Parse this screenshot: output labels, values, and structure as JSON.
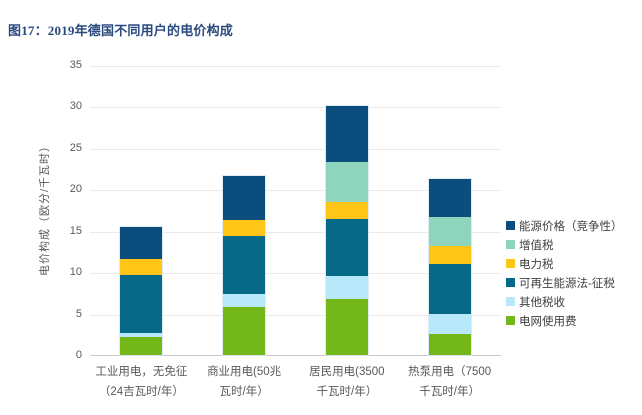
{
  "page": {
    "title": "图17：2019年德国不同用户的电价构成"
  },
  "colors": {
    "title_text": "#2A4A7F",
    "axis_text": "#595959",
    "legend_text": "#404040",
    "gridline": "#EAEAEA",
    "axis_line": "#C8C8C8"
  },
  "chart_data": {
    "type": "bar",
    "stacked": true,
    "title": "图17：2019年德国不同用户的电价构成",
    "xlabel": "",
    "ylabel": "电价构成（欧分/千瓦时）",
    "ylim": [
      0,
      35
    ],
    "yticks": [
      0,
      5,
      10,
      15,
      20,
      25,
      30,
      35
    ],
    "grid": true,
    "legend_position": "right",
    "categories": [
      "工业用电，无免征（24吉瓦时/年）",
      "商业用电(50兆瓦时/年）",
      "居民用电(3500千瓦时/年）",
      "热泵用电（7500千瓦时/年）"
    ],
    "category_label_lines": [
      [
        "工业用电，无免征",
        "（24吉瓦时/年）"
      ],
      [
        "商业用电(50兆",
        "瓦时/年）"
      ],
      [
        "居民用电(3500",
        "千瓦时/年）"
      ],
      [
        "热泵用电（7500",
        "千瓦时/年）"
      ]
    ],
    "stack_order_note": "series listed bottom-to-top of each stacked bar",
    "series": [
      {
        "name": "电网使用费",
        "color": "#73B818",
        "values": [
          2.2,
          5.8,
          6.8,
          2.5
        ]
      },
      {
        "name": "其他税收",
        "color": "#B7E9FB",
        "values": [
          0.5,
          1.6,
          2.7,
          2.5
        ]
      },
      {
        "name": "可再生能源法-征税",
        "color": "#056987",
        "values": [
          6.9,
          7.0,
          6.9,
          6.0
        ]
      },
      {
        "name": "电力税",
        "color": "#FFC617",
        "values": [
          2.0,
          1.9,
          2.1,
          2.1
        ]
      },
      {
        "name": "增值税",
        "color": "#8FD4BC",
        "values": [
          0,
          0,
          4.8,
          3.5
        ]
      },
      {
        "name": "能源价格（竞争性）",
        "color": "#0B4E7E",
        "values": [
          3.8,
          5.3,
          6.8,
          4.6
        ]
      }
    ],
    "legend_top_to_bottom": [
      "能源价格（竞争性）",
      "增值税",
      "电力税",
      "可再生能源法-征税",
      "其他税收",
      "电网使用费"
    ]
  }
}
